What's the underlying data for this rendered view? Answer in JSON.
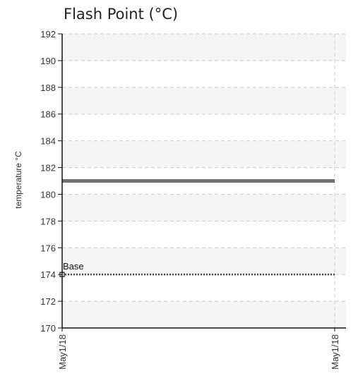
{
  "chart_data": {
    "type": "line",
    "title": "Flash Point (°C)",
    "xlabel": "",
    "ylabel": "temperature °C",
    "x": [
      "May1/18",
      "May1/18"
    ],
    "y_ticks": [
      170,
      172,
      174,
      176,
      178,
      180,
      182,
      184,
      186,
      188,
      190,
      192
    ],
    "ylim": [
      170,
      192
    ],
    "grid": true,
    "series": [
      {
        "values": [
          181,
          181
        ],
        "color": "#707070",
        "style": "solid"
      },
      {
        "name": "Base",
        "values": [
          174,
          174
        ],
        "color": "#444444",
        "style": "dotted",
        "marker": "open-square"
      }
    ],
    "band_color": "#f5f5f5",
    "grid_color": "#cccccc"
  }
}
